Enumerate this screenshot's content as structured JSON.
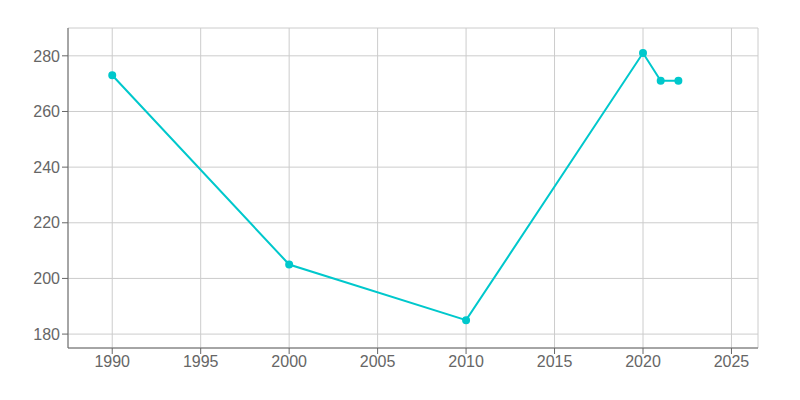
{
  "chart_data": {
    "type": "line",
    "x": [
      1990,
      2000,
      2010,
      2020,
      2021,
      2022
    ],
    "values": [
      273,
      205,
      185,
      281,
      271,
      271
    ],
    "color": "#00c8cc",
    "marker": "circle",
    "xlim": [
      1987.5,
      2026.5
    ],
    "ylim": [
      175,
      290
    ],
    "xticks": [
      1990,
      1995,
      2000,
      2005,
      2010,
      2015,
      2020,
      2025
    ],
    "yticks": [
      180,
      200,
      220,
      240,
      260,
      280
    ],
    "grid": true
  }
}
